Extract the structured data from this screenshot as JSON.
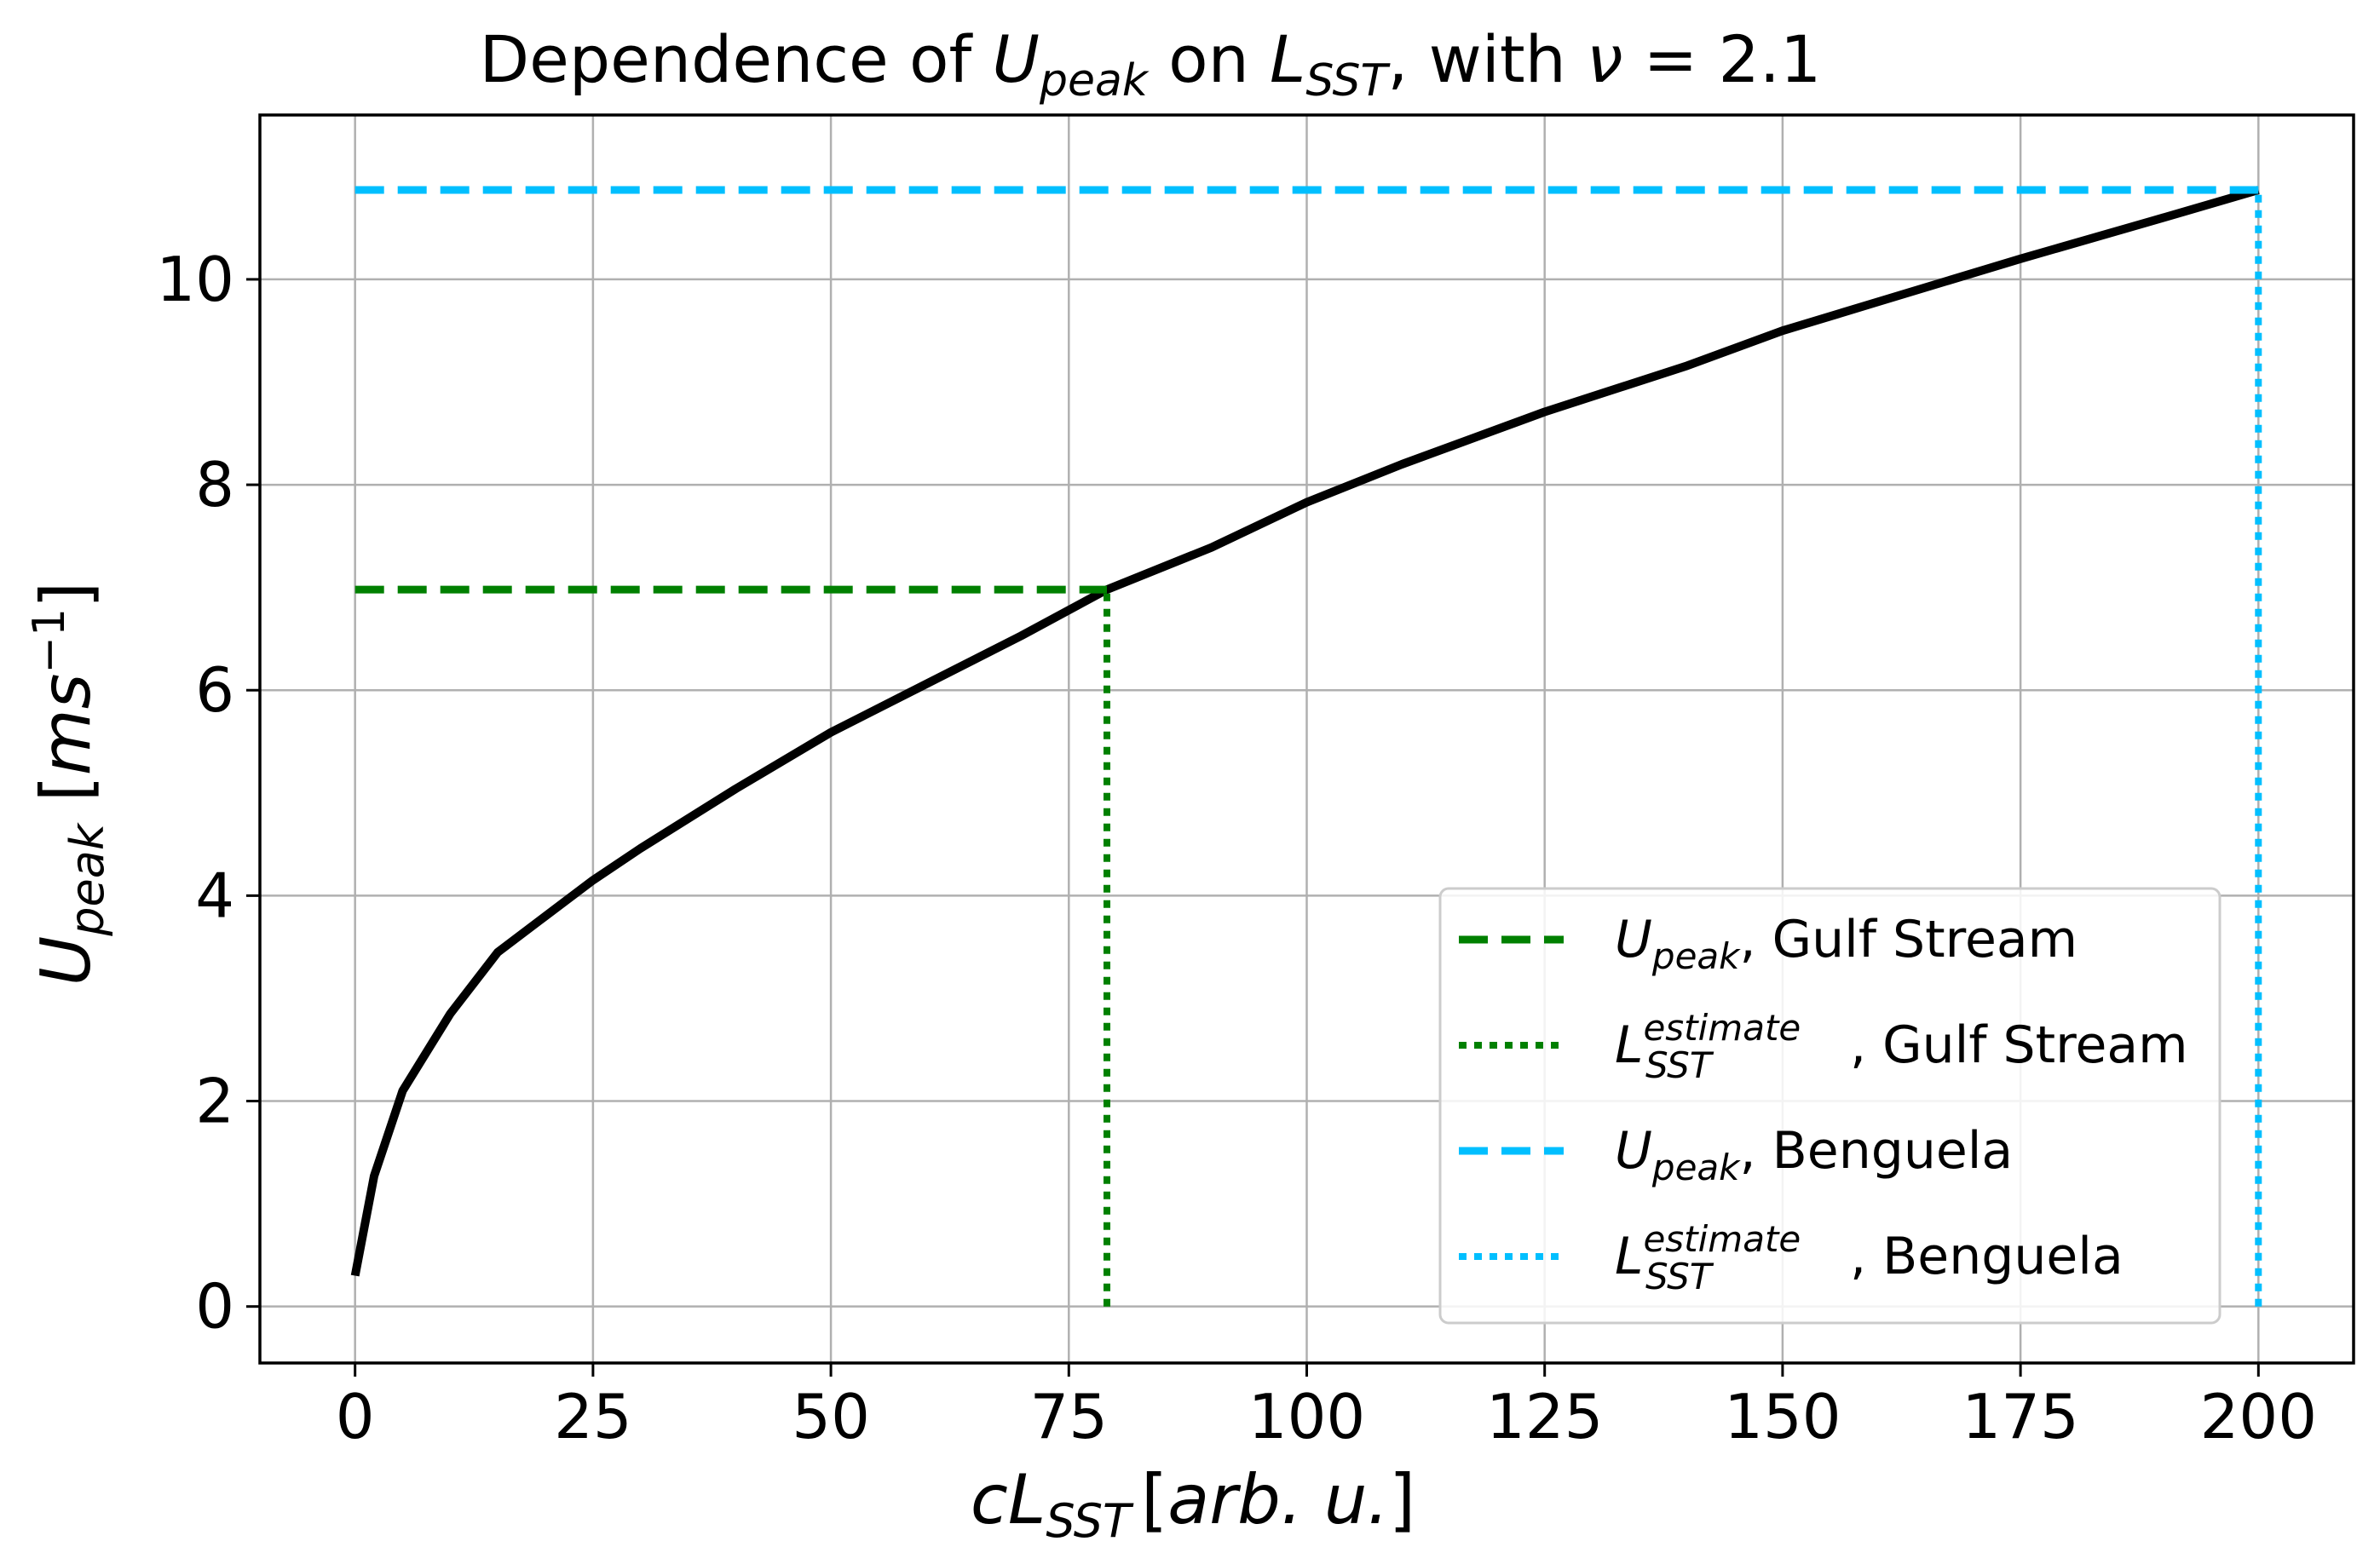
{
  "chart_data": {
    "type": "line",
    "title": {
      "prefix": "Dependence of ",
      "var1": "U",
      "var1_sub": "peak",
      "mid": " on ",
      "var2": "L",
      "var2_sub": "SST",
      "suffix_text": ", with ",
      "nu_symbol": "ν",
      "equals": " = ",
      "nu_value": "2.1"
    },
    "xlabel": {
      "c": "c",
      "L": "L",
      "sub": "SST",
      "bracket_open": "[",
      "unit": "arb. u.",
      "bracket_close": "]"
    },
    "ylabel": {
      "U": "U",
      "sub": "peak",
      "bracket_open": " [",
      "unit": "ms",
      "sup": "−1",
      "bracket_close": "]"
    },
    "xlim": [
      -10,
      210
    ],
    "ylim": [
      -0.55,
      11.6
    ],
    "xticks": [
      0,
      25,
      50,
      75,
      100,
      125,
      150,
      175,
      200
    ],
    "xtick_labels": [
      "0",
      "25",
      "50",
      "75",
      "100",
      "125",
      "150",
      "175",
      "200"
    ],
    "yticks": [
      0,
      2,
      4,
      6,
      8,
      10
    ],
    "ytick_labels": [
      "0",
      "2",
      "4",
      "6",
      "8",
      "10"
    ],
    "grid": true,
    "legend_placement": "lower-right",
    "series": [
      {
        "style": "solid",
        "color": "#000000",
        "x": [
          0,
          2,
          5,
          10,
          15,
          20,
          25,
          30,
          40,
          50,
          60,
          70,
          79,
          90,
          100,
          110,
          125,
          140,
          150,
          160,
          175,
          190,
          200
        ],
        "y": [
          0.3,
          1.27,
          2.1,
          2.85,
          3.45,
          3.8,
          4.15,
          4.46,
          5.04,
          5.59,
          6.06,
          6.53,
          6.98,
          7.39,
          7.83,
          8.2,
          8.71,
          9.16,
          9.5,
          9.78,
          10.2,
          10.6,
          10.87
        ]
      },
      {
        "name": "Upeak, Gulf Stream",
        "style": "dashed",
        "color": "#008000",
        "x": [
          0,
          79
        ],
        "y": [
          6.98,
          6.98
        ]
      },
      {
        "name": "LSST estimate, Gulf Stream",
        "style": "dotted",
        "color": "#008000",
        "x": [
          79,
          79
        ],
        "y": [
          0,
          6.98
        ]
      },
      {
        "name": "Upeak, Benguela",
        "style": "dashed",
        "color": "#00BFFF",
        "x": [
          0,
          200
        ],
        "y": [
          10.87,
          10.87
        ]
      },
      {
        "name": "LSST estimate, Benguela",
        "style": "dotted",
        "color": "#00BFFF",
        "x": [
          200,
          200
        ],
        "y": [
          0,
          10.87
        ]
      }
    ],
    "legend": [
      {
        "main": "U",
        "sub": "peak",
        "sup": "",
        "rest": ", Gulf Stream",
        "style": "dashed",
        "color": "#008000"
      },
      {
        "main": "L",
        "sub": "SST",
        "sup": "estimate",
        "rest": ", Gulf Stream",
        "style": "dotted",
        "color": "#008000"
      },
      {
        "main": "U",
        "sub": "peak",
        "sup": "",
        "rest": ", Benguela",
        "style": "dashed",
        "color": "#00BFFF"
      },
      {
        "main": "L",
        "sub": "SST",
        "sup": "estimate",
        "rest": ", Benguela",
        "style": "dotted",
        "color": "#00BFFF"
      }
    ]
  }
}
